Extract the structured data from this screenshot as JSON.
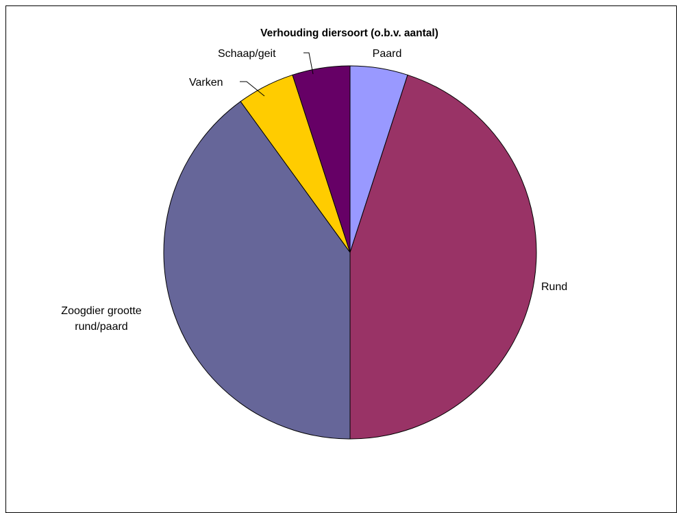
{
  "chart_data": {
    "type": "pie",
    "title": "Verhouding diersoort (o.b.v. aantal)",
    "slices": [
      {
        "label": "Paard",
        "value": 1,
        "color": "#9999FF"
      },
      {
        "label": "Rund",
        "value": 9,
        "color": "#993366"
      },
      {
        "label": "Zoogdier grootte rund/paard",
        "value": 8,
        "color": "#666699"
      },
      {
        "label": "Varken",
        "value": 1,
        "color": "#FFCC00"
      },
      {
        "label": "Schaap/geit",
        "value": 1,
        "color": "#660066"
      }
    ],
    "legend": "none",
    "start": "top, clockwise"
  }
}
